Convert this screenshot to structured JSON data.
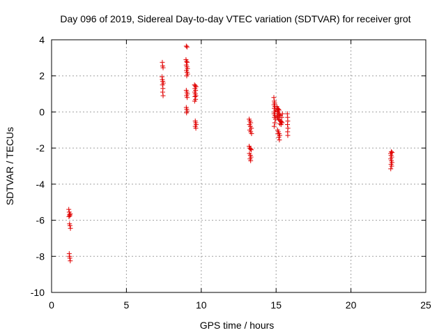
{
  "chart_data": {
    "type": "scatter",
    "title": "Day 096 of 2019, Sidereal Day-to-day VTEC variation (SDTVAR) for receiver grot",
    "xlabel": "GPS time / hours",
    "ylabel": "SDTVAR / TECUs",
    "xlim": [
      0,
      25
    ],
    "ylim": [
      -10,
      4
    ],
    "x_ticks": [
      0,
      5,
      10,
      15,
      20,
      25
    ],
    "y_ticks": [
      -10,
      -8,
      -6,
      -4,
      -2,
      0,
      2,
      4
    ],
    "x_tick_labels": [
      "0",
      "5",
      "10",
      "15",
      "20",
      "25"
    ],
    "y_tick_labels": [
      "-10",
      "-8",
      "-6",
      "-4",
      "-2",
      "0",
      "2",
      "4"
    ],
    "grid": true,
    "marker": "+",
    "series": [
      {
        "name": "SDTVAR",
        "color": "#e00000",
        "points": [
          [
            1.15,
            -5.4
          ],
          [
            1.18,
            -5.55
          ],
          [
            1.2,
            -5.7
          ],
          [
            1.22,
            -5.75
          ],
          [
            1.16,
            -5.8
          ],
          [
            1.25,
            -5.65
          ],
          [
            1.2,
            -6.2
          ],
          [
            1.23,
            -6.3
          ],
          [
            1.26,
            -6.45
          ],
          [
            1.18,
            -7.85
          ],
          [
            1.2,
            -8.0
          ],
          [
            1.22,
            -8.1
          ],
          [
            1.25,
            -8.25
          ],
          [
            7.4,
            2.75
          ],
          [
            7.42,
            2.55
          ],
          [
            7.45,
            2.45
          ],
          [
            7.38,
            1.95
          ],
          [
            7.4,
            1.8
          ],
          [
            7.43,
            1.7
          ],
          [
            7.46,
            1.6
          ],
          [
            7.41,
            1.5
          ],
          [
            7.44,
            1.3
          ],
          [
            7.42,
            1.1
          ],
          [
            7.45,
            0.9
          ],
          [
            9.0,
            3.65
          ],
          [
            9.05,
            3.6
          ],
          [
            8.98,
            2.9
          ],
          [
            9.02,
            2.8
          ],
          [
            9.06,
            2.75
          ],
          [
            9.0,
            2.6
          ],
          [
            9.04,
            2.5
          ],
          [
            9.08,
            2.4
          ],
          [
            9.01,
            2.3
          ],
          [
            9.05,
            2.2
          ],
          [
            9.09,
            2.1
          ],
          [
            9.03,
            2.0
          ],
          [
            9.0,
            1.2
          ],
          [
            9.04,
            1.1
          ],
          [
            9.07,
            1.0
          ],
          [
            9.02,
            0.9
          ],
          [
            9.06,
            0.8
          ],
          [
            9.0,
            0.25
          ],
          [
            9.03,
            0.15
          ],
          [
            9.06,
            0.05
          ],
          [
            9.02,
            -0.05
          ],
          [
            9.55,
            1.5
          ],
          [
            9.6,
            1.45
          ],
          [
            9.65,
            1.4
          ],
          [
            9.58,
            1.3
          ],
          [
            9.62,
            1.2
          ],
          [
            9.56,
            1.1
          ],
          [
            9.6,
            1.0
          ],
          [
            9.64,
            0.9
          ],
          [
            9.58,
            0.85
          ],
          [
            9.62,
            0.7
          ],
          [
            9.56,
            0.6
          ],
          [
            9.6,
            -0.5
          ],
          [
            9.63,
            -0.6
          ],
          [
            9.66,
            -0.7
          ],
          [
            9.6,
            -0.8
          ],
          [
            9.64,
            -0.9
          ],
          [
            13.2,
            -0.4
          ],
          [
            13.25,
            -0.5
          ],
          [
            13.3,
            -0.6
          ],
          [
            13.22,
            -0.7
          ],
          [
            13.28,
            -0.8
          ],
          [
            13.35,
            -0.9
          ],
          [
            13.24,
            -1.0
          ],
          [
            13.3,
            -1.1
          ],
          [
            13.36,
            -1.2
          ],
          [
            13.2,
            -1.9
          ],
          [
            13.25,
            -2.0
          ],
          [
            13.3,
            -2.05
          ],
          [
            13.34,
            -2.1
          ],
          [
            13.22,
            -2.3
          ],
          [
            13.28,
            -2.4
          ],
          [
            13.32,
            -2.5
          ],
          [
            13.26,
            -2.6
          ],
          [
            13.3,
            -2.7
          ],
          [
            14.85,
            0.8
          ],
          [
            14.88,
            0.6
          ],
          [
            14.9,
            0.5
          ],
          [
            14.86,
            0.4
          ],
          [
            14.92,
            0.3
          ],
          [
            14.88,
            0.2
          ],
          [
            14.95,
            0.1
          ],
          [
            14.9,
            0.0
          ],
          [
            14.86,
            -0.1
          ],
          [
            14.93,
            -0.2
          ],
          [
            14.89,
            -0.3
          ],
          [
            14.96,
            -0.4
          ],
          [
            14.91,
            -0.6
          ],
          [
            14.87,
            -0.8
          ],
          [
            15.05,
            0.3
          ],
          [
            15.1,
            0.2
          ],
          [
            15.15,
            0.15
          ],
          [
            15.2,
            0.1
          ],
          [
            15.08,
            0.05
          ],
          [
            15.13,
            0.0
          ],
          [
            15.18,
            -0.1
          ],
          [
            15.23,
            -0.15
          ],
          [
            15.28,
            -0.2
          ],
          [
            15.06,
            -0.25
          ],
          [
            15.12,
            -0.3
          ],
          [
            15.17,
            -0.4
          ],
          [
            15.22,
            -0.45
          ],
          [
            15.3,
            -0.5
          ],
          [
            15.35,
            -0.55
          ],
          [
            15.4,
            -0.6
          ],
          [
            15.25,
            -0.65
          ],
          [
            15.33,
            -0.7
          ],
          [
            15.38,
            -0.3
          ],
          [
            15.42,
            -0.1
          ],
          [
            15.1,
            -1.0
          ],
          [
            15.15,
            -1.1
          ],
          [
            15.2,
            -1.2
          ],
          [
            15.25,
            -1.3
          ],
          [
            15.18,
            -1.4
          ],
          [
            15.22,
            -1.55
          ],
          [
            15.12,
            -1.2
          ],
          [
            15.75,
            -0.1
          ],
          [
            15.77,
            -0.3
          ],
          [
            15.78,
            -0.5
          ],
          [
            15.76,
            -0.7
          ],
          [
            15.79,
            -0.9
          ],
          [
            15.77,
            -1.1
          ],
          [
            15.78,
            -1.3
          ],
          [
            22.65,
            -2.3
          ],
          [
            22.7,
            -2.2
          ],
          [
            22.75,
            -2.25
          ],
          [
            22.68,
            -2.4
          ],
          [
            22.72,
            -2.5
          ],
          [
            22.66,
            -2.6
          ],
          [
            22.7,
            -2.7
          ],
          [
            22.74,
            -2.8
          ],
          [
            22.68,
            -2.9
          ],
          [
            22.72,
            -3.0
          ],
          [
            22.66,
            -3.15
          ]
        ]
      }
    ]
  }
}
